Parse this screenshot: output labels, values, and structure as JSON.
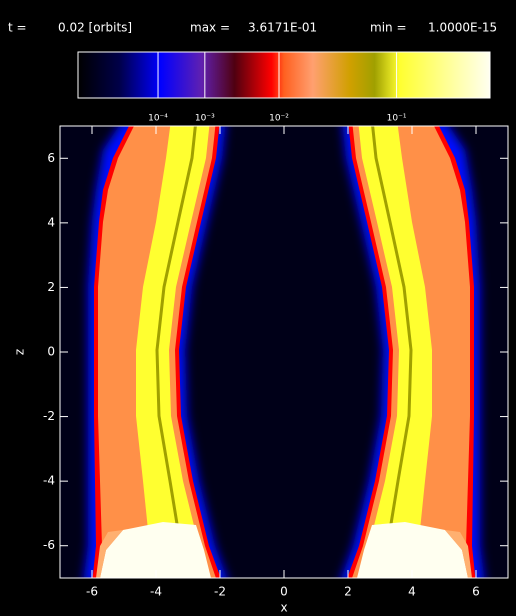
{
  "header": {
    "time_label": "t =",
    "time_value": "0.02 [orbits]",
    "max_label": "max =",
    "max_value": "3.6171E-01",
    "min_label": "min =",
    "min_value": "1.0000E-15"
  },
  "chart_data": {
    "type": "heatmap",
    "xlabel": "x",
    "ylabel": "z",
    "xlim": [
      -7,
      7
    ],
    "ylim": [
      -7,
      7
    ],
    "xticks": [
      -6,
      -4,
      -2,
      0,
      2,
      4,
      6
    ],
    "yticks": [
      -6,
      -4,
      -2,
      0,
      2,
      4,
      6
    ],
    "colorbar": {
      "lim": [
        1e-15,
        0.36171
      ],
      "power": 0.2,
      "ticks": [
        {
          "value": 0.0001,
          "label": "10⁻⁴"
        },
        {
          "value": 0.001,
          "label": "10⁻³"
        },
        {
          "value": 0.01,
          "label": "10⁻²"
        },
        {
          "value": 0.1,
          "label": "10⁻¹"
        }
      ]
    }
  }
}
